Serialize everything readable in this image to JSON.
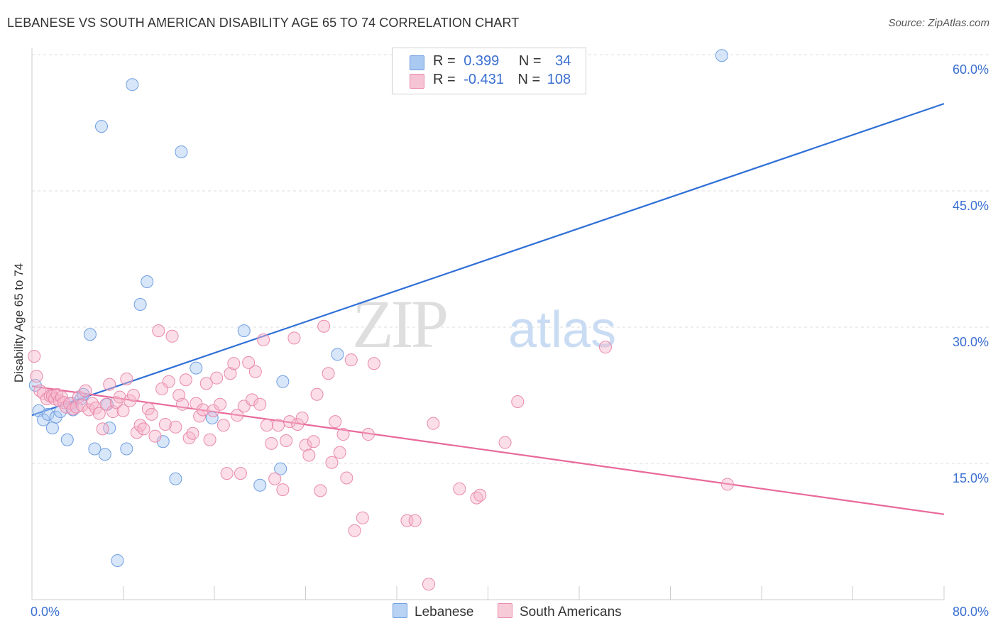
{
  "title": "LEBANESE VS SOUTH AMERICAN DISABILITY AGE 65 TO 74 CORRELATION CHART",
  "source": "Source: ZipAtlas.com",
  "watermark": {
    "zip": "ZIP",
    "atlas": "atlas"
  },
  "legend": {
    "rows": [
      {
        "r_label": "R =",
        "r_value": "0.399",
        "n_label": "N =",
        "n_value": "34"
      },
      {
        "r_label": "R =",
        "r_value": "-0.431",
        "n_label": "N =",
        "n_value": "108"
      }
    ]
  },
  "bottom_legend": {
    "item1": "Lebanese",
    "item2": "South Americans"
  },
  "colors": {
    "blue_fill": "#a9c8f2",
    "blue_stroke": "#6f9ee0",
    "blue_line": "#2f6fd6",
    "pink_fill": "#f6b6cb",
    "pink_stroke": "#e98aab",
    "pink_line": "#e8699a",
    "axis_text": "#3a6fd0",
    "grid": "#dddddd"
  },
  "chart_data": {
    "type": "scatter",
    "title": "LEBANESE VS SOUTH AMERICAN DISABILITY AGE 65 TO 74 CORRELATION CHART",
    "xlabel": "",
    "ylabel": "Disability Age 65 to 74",
    "xlim": [
      0,
      80
    ],
    "ylim": [
      0,
      60
    ],
    "x_tick_labels": [
      "0.0%",
      "80.0%"
    ],
    "y_ticks": [
      15,
      30,
      45,
      60
    ],
    "y_tick_labels": [
      "15.0%",
      "30.0%",
      "45.0%",
      "60.0%"
    ],
    "grid": true,
    "series": [
      {
        "name": "Lebanese",
        "color": "blue",
        "points": [
          [
            0.3,
            23.6
          ],
          [
            0.6,
            20.8
          ],
          [
            1.0,
            19.8
          ],
          [
            1.4,
            20.4
          ],
          [
            1.8,
            18.9
          ],
          [
            2.1,
            20.1
          ],
          [
            2.5,
            20.7
          ],
          [
            3.1,
            17.6
          ],
          [
            3.5,
            21.6
          ],
          [
            4.3,
            22.1
          ],
          [
            4.5,
            22.6
          ],
          [
            5.1,
            29.2
          ],
          [
            5.5,
            16.6
          ],
          [
            6.1,
            52.1
          ],
          [
            6.4,
            16.0
          ],
          [
            6.6,
            21.5
          ],
          [
            6.8,
            18.9
          ],
          [
            7.5,
            4.3
          ],
          [
            8.3,
            16.6
          ],
          [
            8.8,
            56.7
          ],
          [
            9.5,
            32.5
          ],
          [
            10.1,
            35.0
          ],
          [
            11.5,
            17.4
          ],
          [
            12.6,
            13.3
          ],
          [
            13.1,
            49.3
          ],
          [
            14.4,
            25.5
          ],
          [
            15.8,
            20.0
          ],
          [
            18.6,
            29.6
          ],
          [
            20.0,
            12.6
          ],
          [
            21.8,
            14.4
          ],
          [
            22.0,
            24.0
          ],
          [
            26.8,
            27.0
          ],
          [
            60.5,
            59.9
          ],
          [
            3.6,
            20.9
          ]
        ],
        "trend": {
          "x": [
            0,
            80
          ],
          "y": [
            20.3,
            54.6
          ]
        }
      },
      {
        "name": "South Americans",
        "color": "pink",
        "points": [
          [
            0.2,
            26.8
          ],
          [
            0.4,
            24.6
          ],
          [
            0.7,
            23.0
          ],
          [
            1.0,
            22.7
          ],
          [
            1.3,
            22.1
          ],
          [
            1.6,
            22.4
          ],
          [
            1.8,
            22.4
          ],
          [
            2.0,
            22.1
          ],
          [
            2.2,
            22.6
          ],
          [
            2.4,
            21.9
          ],
          [
            2.6,
            22.3
          ],
          [
            2.8,
            21.7
          ],
          [
            3.0,
            21.2
          ],
          [
            3.3,
            21.6
          ],
          [
            3.6,
            21.0
          ],
          [
            3.9,
            21.2
          ],
          [
            4.1,
            22.3
          ],
          [
            4.4,
            21.4
          ],
          [
            4.7,
            23.0
          ],
          [
            5.0,
            20.9
          ],
          [
            5.3,
            21.6
          ],
          [
            5.6,
            21.1
          ],
          [
            5.9,
            20.5
          ],
          [
            6.2,
            18.8
          ],
          [
            6.5,
            21.5
          ],
          [
            6.8,
            23.7
          ],
          [
            7.1,
            20.7
          ],
          [
            7.4,
            21.7
          ],
          [
            7.7,
            22.3
          ],
          [
            8.0,
            20.8
          ],
          [
            8.3,
            24.3
          ],
          [
            8.6,
            21.9
          ],
          [
            8.9,
            22.5
          ],
          [
            9.2,
            18.4
          ],
          [
            9.5,
            19.2
          ],
          [
            9.8,
            18.8
          ],
          [
            10.2,
            21.0
          ],
          [
            10.5,
            20.4
          ],
          [
            10.8,
            18.0
          ],
          [
            11.1,
            29.6
          ],
          [
            11.4,
            23.2
          ],
          [
            11.7,
            19.3
          ],
          [
            12.0,
            24.0
          ],
          [
            12.3,
            29.0
          ],
          [
            12.6,
            19.0
          ],
          [
            12.9,
            22.5
          ],
          [
            13.2,
            21.5
          ],
          [
            13.5,
            24.2
          ],
          [
            13.8,
            17.8
          ],
          [
            14.1,
            18.3
          ],
          [
            14.4,
            21.6
          ],
          [
            14.7,
            20.2
          ],
          [
            15.0,
            20.9
          ],
          [
            15.3,
            23.8
          ],
          [
            15.6,
            17.6
          ],
          [
            15.9,
            20.8
          ],
          [
            16.2,
            24.4
          ],
          [
            16.5,
            21.5
          ],
          [
            16.8,
            19.2
          ],
          [
            17.1,
            13.9
          ],
          [
            17.4,
            24.9
          ],
          [
            17.7,
            26.0
          ],
          [
            18.0,
            20.3
          ],
          [
            18.3,
            13.9
          ],
          [
            18.6,
            21.3
          ],
          [
            19.0,
            26.1
          ],
          [
            19.3,
            22.0
          ],
          [
            19.6,
            25.1
          ],
          [
            20.0,
            21.5
          ],
          [
            20.3,
            28.6
          ],
          [
            20.6,
            19.2
          ],
          [
            21.0,
            17.2
          ],
          [
            21.3,
            13.3
          ],
          [
            21.6,
            19.2
          ],
          [
            22.0,
            12.1
          ],
          [
            22.3,
            17.5
          ],
          [
            22.6,
            19.6
          ],
          [
            23.0,
            28.8
          ],
          [
            23.3,
            19.3
          ],
          [
            23.7,
            20.0
          ],
          [
            24.0,
            17.0
          ],
          [
            24.3,
            15.9
          ],
          [
            24.7,
            17.4
          ],
          [
            25.0,
            22.6
          ],
          [
            25.3,
            12.0
          ],
          [
            25.6,
            30.1
          ],
          [
            26.0,
            24.9
          ],
          [
            26.3,
            15.1
          ],
          [
            26.6,
            19.6
          ],
          [
            27.0,
            16.2
          ],
          [
            27.3,
            18.2
          ],
          [
            27.6,
            13.4
          ],
          [
            28.0,
            26.4
          ],
          [
            28.3,
            7.6
          ],
          [
            29.0,
            9.0
          ],
          [
            29.5,
            18.2
          ],
          [
            30.0,
            26.0
          ],
          [
            32.9,
            8.7
          ],
          [
            33.6,
            8.7
          ],
          [
            35.2,
            19.4
          ],
          [
            37.5,
            12.2
          ],
          [
            39.0,
            11.2
          ],
          [
            39.3,
            11.5
          ],
          [
            41.5,
            17.3
          ],
          [
            42.6,
            21.8
          ],
          [
            50.3,
            27.8
          ],
          [
            61.0,
            12.7
          ],
          [
            34.8,
            1.7
          ]
        ],
        "trend": {
          "x": [
            0,
            80
          ],
          "y": [
            23.5,
            9.4
          ]
        }
      }
    ]
  }
}
